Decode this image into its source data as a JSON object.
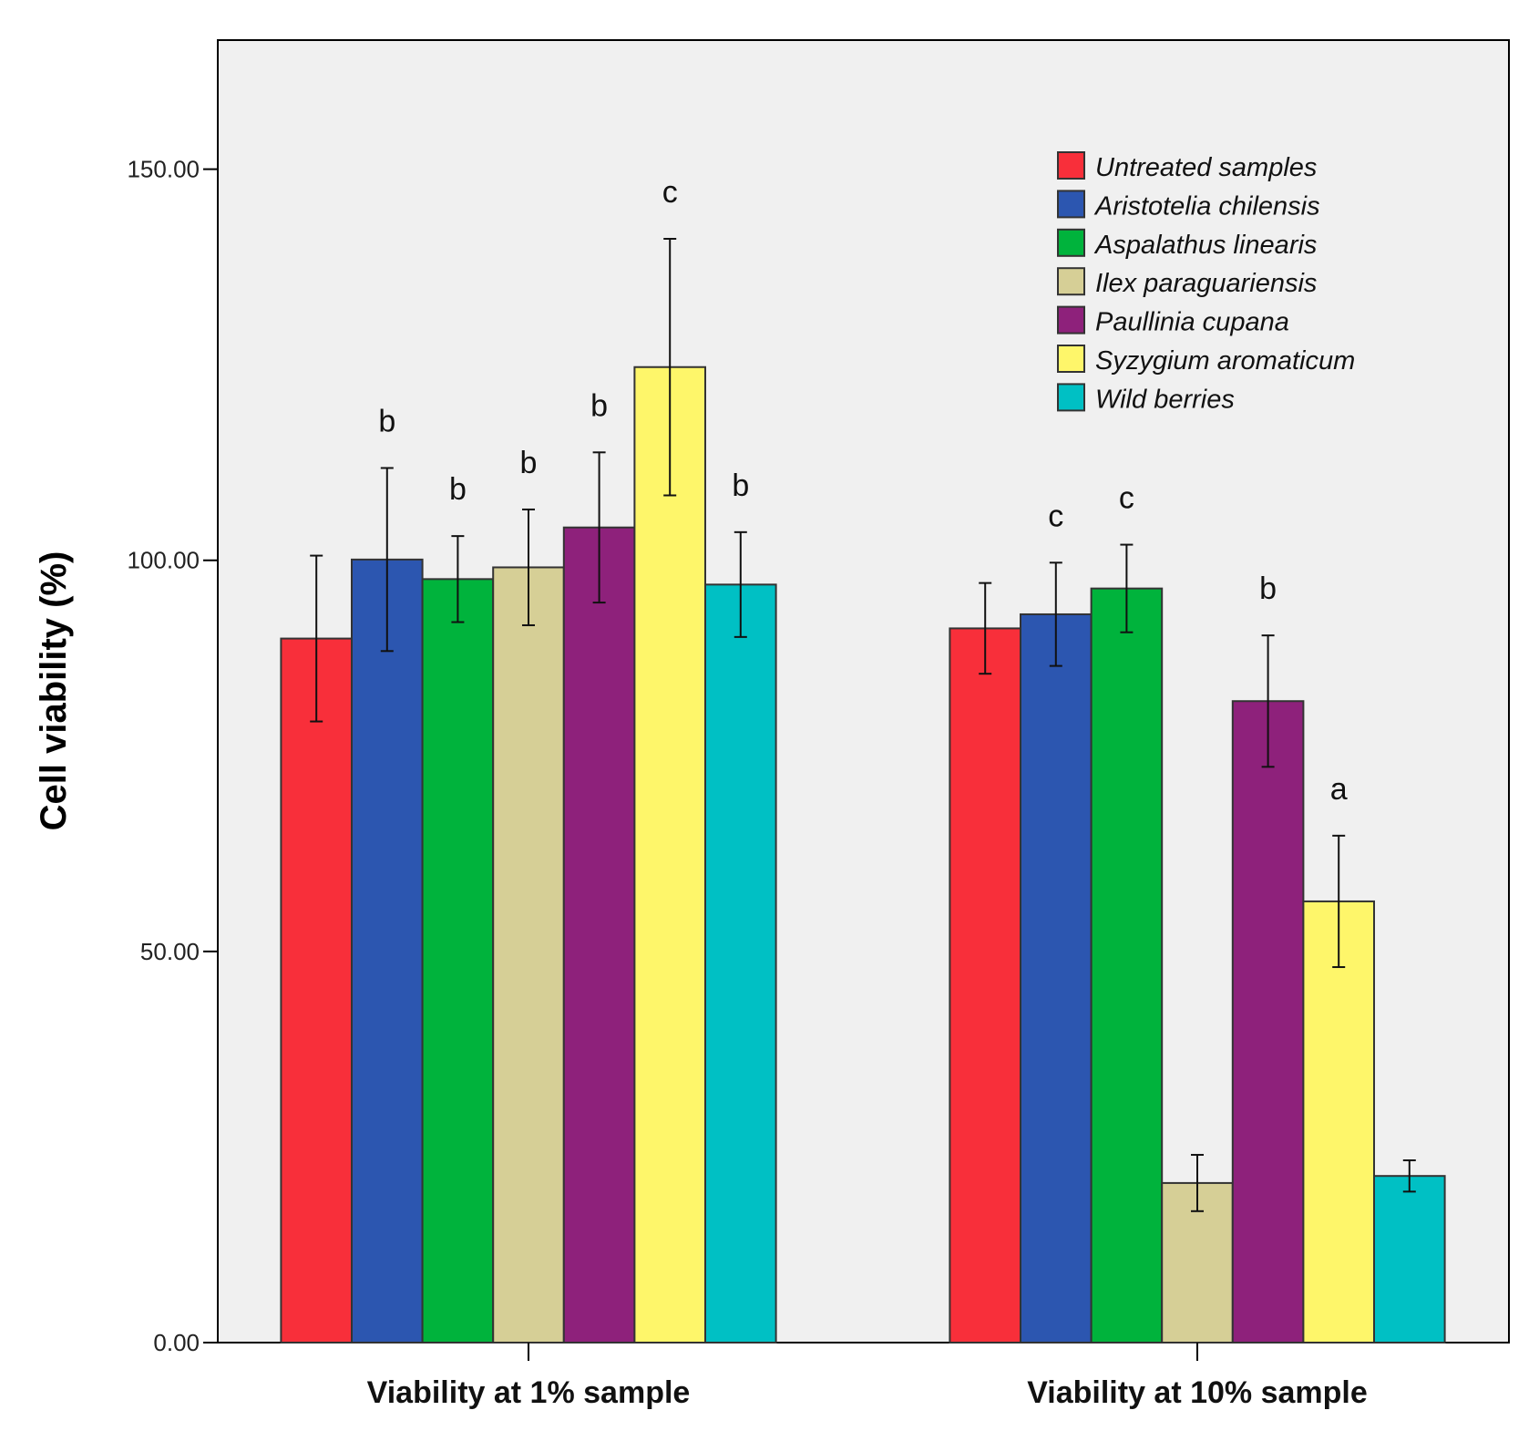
{
  "chart_data": {
    "type": "bar",
    "title": "",
    "xlabel": "",
    "ylabel": "Cell viability (%)",
    "ylim": [
      0,
      166.5
    ],
    "yticks": [
      "0.00",
      "50.00",
      "100.00",
      "150.00"
    ],
    "ytick_values": [
      0,
      50,
      100,
      150
    ],
    "grid": false,
    "legend_position": "top-right",
    "categories": [
      "Viability at 1% sample",
      "Viability at 10% sample"
    ],
    "series": [
      {
        "name": "Untreated  samples",
        "color": "#f82f3a",
        "values": [
          90,
          91.3
        ],
        "errors": [
          10.6,
          5.8
        ],
        "labels": [
          "",
          ""
        ]
      },
      {
        "name": "Aristotelia chilensis",
        "color": "#2c56b0",
        "values": [
          100.1,
          93.1
        ],
        "errors": [
          11.7,
          6.6
        ],
        "labels": [
          "b",
          "c"
        ]
      },
      {
        "name": "Aspalathus linearis",
        "color": "#00b33c",
        "values": [
          97.6,
          96.4
        ],
        "errors": [
          5.5,
          5.6
        ],
        "labels": [
          "b",
          "c"
        ]
      },
      {
        "name": "Ilex paraguariensis",
        "color": "#d6cf96",
        "values": [
          99.1,
          20.4
        ],
        "errors": [
          7.4,
          3.6
        ],
        "labels": [
          "b",
          ""
        ]
      },
      {
        "name": "Paullinia cupana",
        "color": "#8e217b",
        "values": [
          104.2,
          82
        ],
        "errors": [
          9.6,
          8.4
        ],
        "labels": [
          "b",
          "b"
        ]
      },
      {
        "name": "Syzygium aromaticum",
        "color": "#fef66a",
        "values": [
          124.7,
          56.4
        ],
        "errors": [
          16.4,
          8.4
        ],
        "labels": [
          "c",
          "a"
        ]
      },
      {
        "name": "Wild berries",
        "color": "#00c0c4",
        "values": [
          96.9,
          21.3
        ],
        "errors": [
          6.7,
          2.0
        ],
        "labels": [
          "b",
          ""
        ]
      }
    ]
  }
}
